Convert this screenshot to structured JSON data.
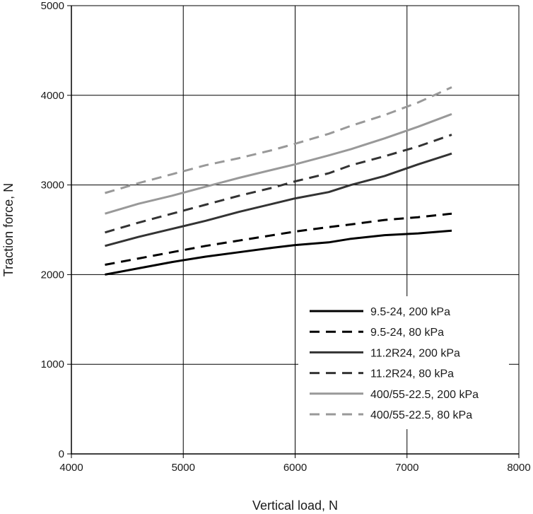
{
  "chart_data": {
    "type": "line",
    "title": "",
    "xlabel": "Vertical load, N",
    "ylabel": "Traction force, N",
    "xlim": [
      4000,
      8000
    ],
    "ylim": [
      0,
      5000
    ],
    "xticks": [
      4000,
      5000,
      6000,
      7000,
      8000
    ],
    "yticks": [
      0,
      1000,
      2000,
      3000,
      4000,
      5000
    ],
    "grid": true,
    "legend_position": "bottom-right",
    "series": [
      {
        "name": "9.5-24, 200 kPa",
        "color": "#000000",
        "style": "solid",
        "x": [
          4300,
          4600,
          4900,
          5200,
          5500,
          5800,
          6000,
          6300,
          6500,
          6800,
          7100,
          7400
        ],
        "y": [
          2000,
          2070,
          2140,
          2200,
          2250,
          2300,
          2330,
          2360,
          2400,
          2440,
          2460,
          2490
        ]
      },
      {
        "name": "9.5-24, 80 kPa",
        "color": "#000000",
        "style": "dashed",
        "x": [
          4300,
          4600,
          4900,
          5200,
          5500,
          5800,
          6000,
          6300,
          6500,
          6800,
          7100,
          7400
        ],
        "y": [
          2110,
          2180,
          2250,
          2320,
          2380,
          2440,
          2480,
          2530,
          2560,
          2610,
          2640,
          2680
        ]
      },
      {
        "name": "11.2R24, 200 kPa",
        "color": "#333333",
        "style": "solid",
        "x": [
          4300,
          4600,
          4900,
          5200,
          5500,
          5800,
          6000,
          6300,
          6500,
          6800,
          7100,
          7400
        ],
        "y": [
          2320,
          2420,
          2510,
          2600,
          2700,
          2790,
          2850,
          2920,
          3000,
          3100,
          3230,
          3350
        ]
      },
      {
        "name": "11.2R24, 80 kPa",
        "color": "#333333",
        "style": "dashed",
        "x": [
          4300,
          4600,
          4900,
          5200,
          5500,
          5800,
          6000,
          6300,
          6500,
          6800,
          7100,
          7400
        ],
        "y": [
          2470,
          2580,
          2680,
          2780,
          2880,
          2970,
          3040,
          3130,
          3220,
          3320,
          3430,
          3560
        ]
      },
      {
        "name": "400/55-22.5, 200 kPa",
        "color": "#999999",
        "style": "solid",
        "x": [
          4300,
          4600,
          4900,
          5200,
          5500,
          5800,
          6000,
          6300,
          6500,
          6800,
          7100,
          7400
        ],
        "y": [
          2680,
          2790,
          2880,
          2980,
          3080,
          3170,
          3230,
          3330,
          3400,
          3520,
          3650,
          3790
        ]
      },
      {
        "name": "400/55-22.5, 80 kPa",
        "color": "#999999",
        "style": "dashed",
        "x": [
          4300,
          4600,
          4900,
          5200,
          5500,
          5800,
          6000,
          6300,
          6500,
          6800,
          7100,
          7400
        ],
        "y": [
          2910,
          3020,
          3120,
          3220,
          3300,
          3390,
          3460,
          3570,
          3660,
          3780,
          3920,
          4090
        ]
      }
    ]
  }
}
